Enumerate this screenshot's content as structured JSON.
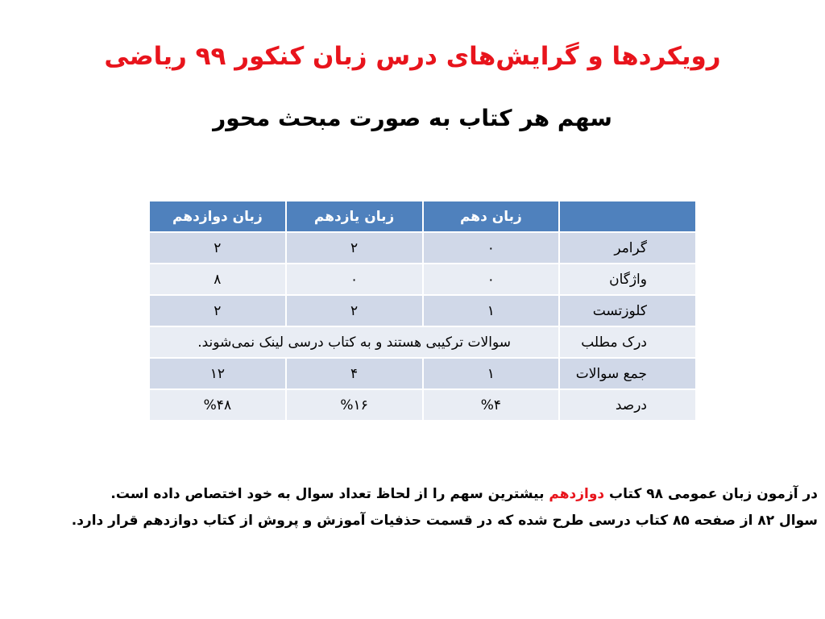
{
  "title": "رویکردها و گرایش‌های درس زبان کنکور ۹۹ ریاضی",
  "subtitle": "سهم هر کتاب به صورت مبحث محور",
  "table": {
    "headers": [
      "",
      "زبان دهم",
      "زبان یازدهم",
      "زبان دوازدهم"
    ],
    "rows": [
      {
        "label": "گرامر",
        "values": [
          "۰",
          "۲",
          "۲"
        ]
      },
      {
        "label": "واژگان",
        "values": [
          "۰",
          "۰",
          "۸"
        ]
      },
      {
        "label": "کلوزتست",
        "values": [
          "۱",
          "۲",
          "۲"
        ]
      },
      {
        "label": "درک مطلب",
        "merged": "سوالات ترکیبی هستند و به کتاب درسی لینک نمی‌شوند."
      },
      {
        "label": "جمع سوالات",
        "values": [
          "۱",
          "۴",
          "۱۲"
        ]
      },
      {
        "label": "درصد",
        "values": [
          "%۴",
          "%۱۶",
          "%۴۸"
        ]
      }
    ]
  },
  "notes": {
    "line1_a": "در آزمون زبان عمومی ۹۸ کتاب ",
    "line1_highlight": "دوازدهم",
    "line1_b": " بیشترین سهم را از لحاظ تعداد سوال به خود اختصاص داده است.",
    "line2": "سوال ۸۲ از صفحه ۸۵ کتاب درسی طرح شده که در قسمت حذفیات آموزش و پروش از کتاب دوازدهم قرار دارد."
  },
  "colors": {
    "title": "#e8141c",
    "header": "#4f81bd",
    "row_odd": "#d0d8e8",
    "row_even": "#e9edf4",
    "highlight": "#e8141c"
  }
}
